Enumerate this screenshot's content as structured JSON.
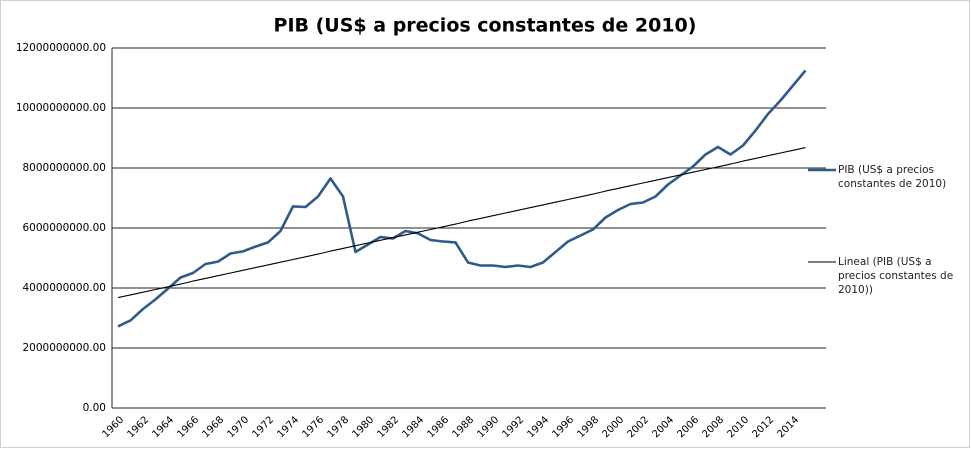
{
  "chart_data": {
    "type": "line",
    "title": "PIB (US$ a precios constantes de 2010)",
    "categories": [
      "1960",
      null,
      "1962",
      null,
      "1964",
      null,
      "1966",
      null,
      "1968",
      null,
      "1970",
      null,
      "1972",
      null,
      "1974",
      null,
      "1976",
      null,
      "1978",
      null,
      "1980",
      null,
      "1982",
      null,
      "1984",
      null,
      "1986",
      null,
      "1988",
      null,
      "1990",
      null,
      "1992",
      null,
      "1994",
      null,
      "1996",
      null,
      "1998",
      null,
      "2000",
      null,
      "2002",
      null,
      "2004",
      null,
      "2006",
      null,
      "2008",
      null,
      "2010",
      null,
      "2012",
      null,
      "2014",
      null
    ],
    "series": [
      {
        "name": "PIB (US$ a precios constantes de 2010)",
        "color": "#2e5a8c",
        "values": [
          2720000000,
          2920000000,
          3300000000,
          3620000000,
          3980000000,
          4350000000,
          4500000000,
          4800000000,
          4880000000,
          5150000000,
          5220000000,
          5380000000,
          5520000000,
          5900000000,
          6720000000,
          6700000000,
          7050000000,
          7650000000,
          7050000000,
          5200000000,
          5450000000,
          5700000000,
          5650000000,
          5900000000,
          5820000000,
          5600000000,
          5550000000,
          5520000000,
          4850000000,
          4750000000,
          4750000000,
          4700000000,
          4750000000,
          4700000000,
          4850000000,
          5200000000,
          5550000000,
          5750000000,
          5950000000,
          6350000000,
          6600000000,
          6800000000,
          6850000000,
          7050000000,
          7450000000,
          7750000000,
          8050000000,
          8450000000,
          8700000000,
          8450000000,
          8750000000,
          9250000000,
          9800000000,
          10250000000,
          10750000000,
          11250000000
        ]
      },
      {
        "name": "Lineal (PIB (US$ a precios constantes de 2010))",
        "color": "#000000",
        "values": [
          3680000000,
          3770000000,
          3860000000,
          3950000000,
          4040000000,
          4130000000,
          4230000000,
          4320000000,
          4410000000,
          4500000000,
          4590000000,
          4680000000,
          4770000000,
          4860000000,
          4950000000,
          5040000000,
          5130000000,
          5230000000,
          5320000000,
          5410000000,
          5500000000,
          5590000000,
          5680000000,
          5770000000,
          5860000000,
          5950000000,
          6040000000,
          6130000000,
          6230000000,
          6320000000,
          6410000000,
          6500000000,
          6590000000,
          6680000000,
          6770000000,
          6860000000,
          6950000000,
          7040000000,
          7130000000,
          7230000000,
          7320000000,
          7410000000,
          7500000000,
          7590000000,
          7680000000,
          7770000000,
          7860000000,
          7950000000,
          8040000000,
          8130000000,
          8230000000,
          8320000000,
          8410000000,
          8500000000,
          8590000000,
          8680000000
        ]
      }
    ],
    "ylim": [
      0,
      12000000000
    ],
    "yticks": [
      {
        "value": 0,
        "label": "0.00"
      },
      {
        "value": 2000000000,
        "label": "2000000000.00"
      },
      {
        "value": 4000000000,
        "label": "4000000000.00"
      },
      {
        "value": 6000000000,
        "label": "6000000000.00"
      },
      {
        "value": 8000000000,
        "label": "8000000000.00"
      },
      {
        "value": 10000000000,
        "label": "10000000000.00"
      },
      {
        "value": 12000000000,
        "label": "12000000000.00"
      }
    ],
    "grid": true,
    "legend": "right"
  }
}
